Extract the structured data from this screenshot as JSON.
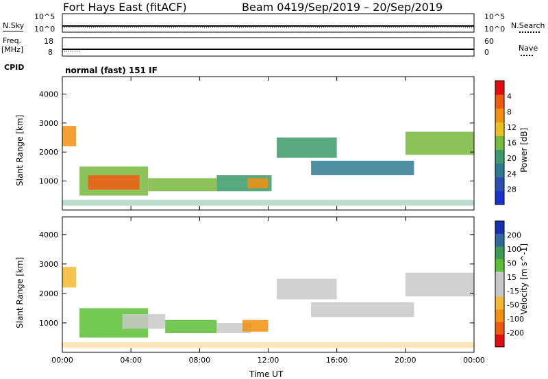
{
  "header": {
    "station": "Fort Hays East (fitACF)",
    "beam": "Beam 04",
    "date_range": "19/Sep/2019 – 20/Sep/2019"
  },
  "sidebar_labels": {
    "nsky": "N.Sky",
    "freq": "Freq.",
    "freq_unit": "[MHz]",
    "cpid": "CPID",
    "nsearch": "N.Search",
    "nave": "Nave"
  },
  "small_ticks": {
    "nsky_top": "10^5",
    "nsky_bottom": "10^0",
    "nsearch_top": "10^5",
    "nsearch_bottom": "10^0",
    "freq_top": "18",
    "freq_bottom": "8",
    "nave_top": "60",
    "nave_bottom": "0"
  },
  "cpid_text": "normal (fast) 151 IF",
  "colors": {
    "power": [
      "#1a2fd0",
      "#2e4fb0",
      "#2f7a90",
      "#3c9a6a",
      "#7ab840",
      "#e8c020",
      "#f29010",
      "#f05a10",
      "#e01010"
    ],
    "velocity": [
      "#e01010",
      "#f05a10",
      "#f29010",
      "#f5b830",
      "#c8c8c8",
      "#c8c8c8",
      "#5abf35",
      "#3a9b55",
      "#2e6a9a",
      "#1a2fb0"
    ]
  },
  "chart_data": [
    {
      "type": "heatmap",
      "title": "",
      "xlabel": "Time UT",
      "ylabel": "Slant Range [km]",
      "x_ticks": [
        "00:00",
        "04:00",
        "08:00",
        "12:00",
        "16:00",
        "20:00",
        "00:00"
      ],
      "y_ticks": [
        "1000",
        "2000",
        "3000",
        "4000"
      ],
      "colorbar_label": "Power [dB]",
      "colorbar_ticks": [
        "4",
        "8",
        "12",
        "16",
        "20",
        "24",
        "28"
      ],
      "regions": [
        {
          "t0": 0.0,
          "t1": 0.8,
          "r0": 2200,
          "r1": 2900,
          "level": 6
        },
        {
          "t0": 1.0,
          "t1": 5.0,
          "r0": 500,
          "r1": 1500,
          "level": 4
        },
        {
          "t0": 1.5,
          "t1": 4.5,
          "r0": 700,
          "r1": 1200,
          "level": 7
        },
        {
          "t0": 5.0,
          "t1": 9.0,
          "r0": 650,
          "r1": 1100,
          "level": 4
        },
        {
          "t0": 9.0,
          "t1": 12.2,
          "r0": 650,
          "r1": 1200,
          "level": 3
        },
        {
          "t0": 10.8,
          "t1": 12.0,
          "r0": 750,
          "r1": 1100,
          "level": 6
        },
        {
          "t0": 12.5,
          "t1": 16.0,
          "r0": 1800,
          "r1": 2500,
          "level": 3
        },
        {
          "t0": 14.5,
          "t1": 20.5,
          "r0": 1200,
          "r1": 1700,
          "level": 2
        },
        {
          "t0": 20.0,
          "t1": 24.0,
          "r0": 1900,
          "r1": 2700,
          "level": 4
        }
      ]
    },
    {
      "type": "heatmap",
      "title": "",
      "xlabel": "Time UT",
      "ylabel": "Slant Range [km]",
      "x_ticks": [
        "00:00",
        "04:00",
        "08:00",
        "12:00",
        "16:00",
        "20:00",
        "00:00"
      ],
      "y_ticks": [
        "1000",
        "2000",
        "3000",
        "4000"
      ],
      "colorbar_label": "Velocity [m s^-1]",
      "colorbar_ticks": [
        "200",
        "100",
        "50",
        "15",
        "-15",
        "-50",
        "-100",
        "-200"
      ],
      "regions": [
        {
          "t0": 0.0,
          "t1": 0.8,
          "r0": 2200,
          "r1": 2900,
          "level": 3
        },
        {
          "t0": 1.0,
          "t1": 5.0,
          "r0": 500,
          "r1": 1500,
          "level": 6
        },
        {
          "t0": 3.5,
          "t1": 6.0,
          "r0": 800,
          "r1": 1300,
          "level": 4
        },
        {
          "t0": 6.0,
          "t1": 9.0,
          "r0": 650,
          "r1": 1100,
          "level": 6
        },
        {
          "t0": 9.0,
          "t1": 11.0,
          "r0": 650,
          "r1": 1000,
          "level": 4
        },
        {
          "t0": 10.5,
          "t1": 12.0,
          "r0": 700,
          "r1": 1100,
          "level": 2
        },
        {
          "t0": 12.5,
          "t1": 16.0,
          "r0": 1800,
          "r1": 2500,
          "level": 4
        },
        {
          "t0": 14.5,
          "t1": 20.5,
          "r0": 1200,
          "r1": 1700,
          "level": 4
        },
        {
          "t0": 20.0,
          "t1": 24.0,
          "r0": 1900,
          "r1": 2700,
          "level": 4
        }
      ]
    }
  ]
}
